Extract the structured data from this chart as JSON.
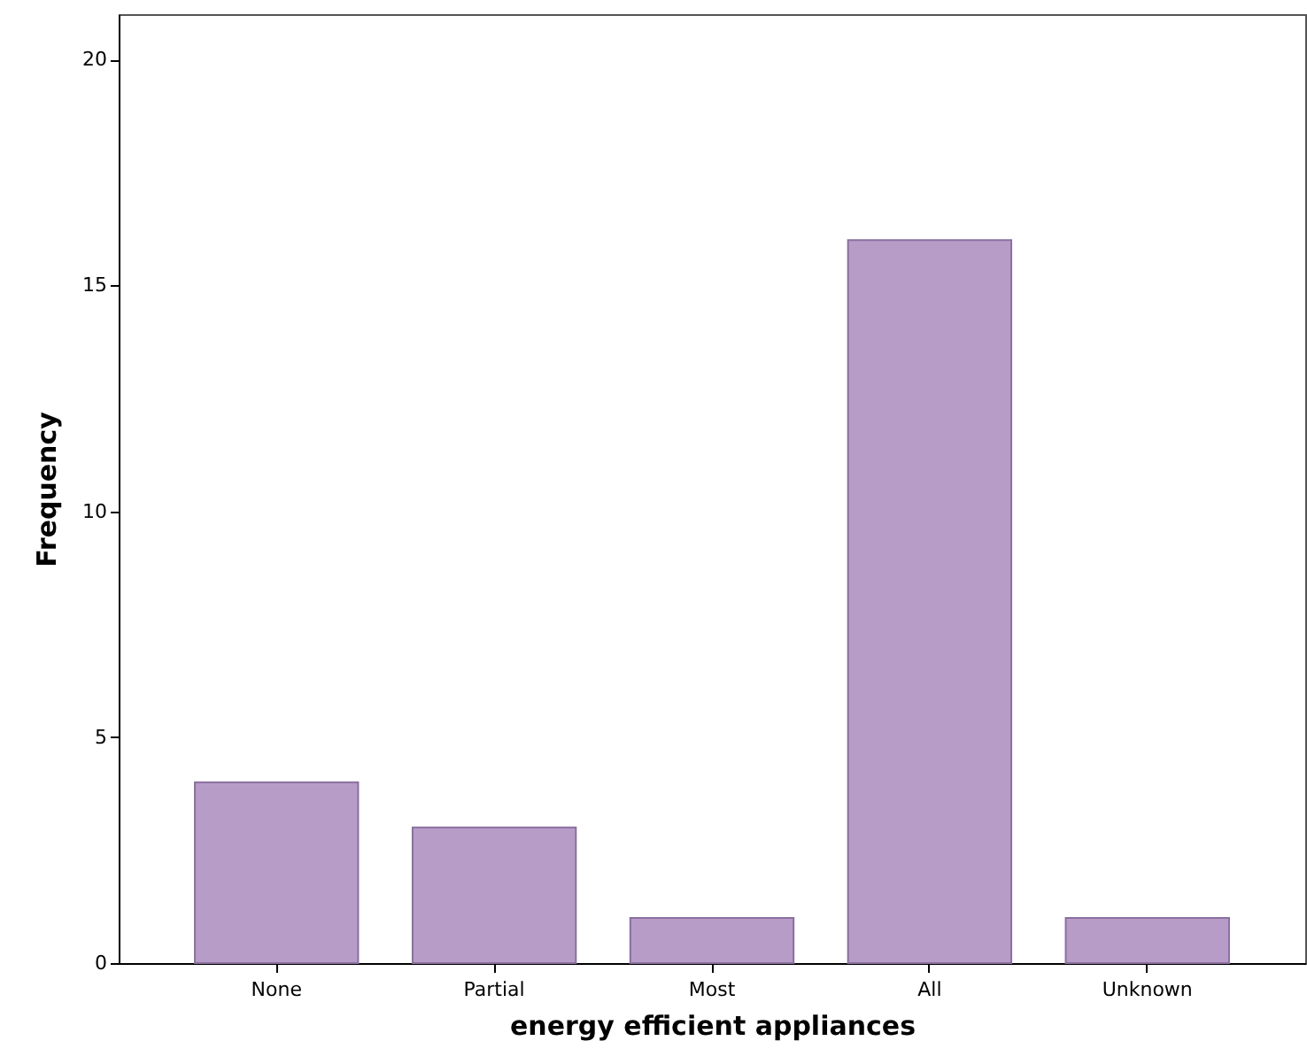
{
  "chart_data": {
    "type": "bar",
    "xlabel": "energy efficient appliances",
    "ylabel": "Frequency",
    "categories": [
      "None",
      "Partial",
      "Most",
      "All",
      "Unknown"
    ],
    "values": [
      4,
      3,
      1,
      16,
      1
    ],
    "color": "#b79cc8",
    "ylim": [
      0,
      21
    ],
    "yticks": [
      0,
      5,
      10,
      15,
      20
    ],
    "grid": false
  }
}
